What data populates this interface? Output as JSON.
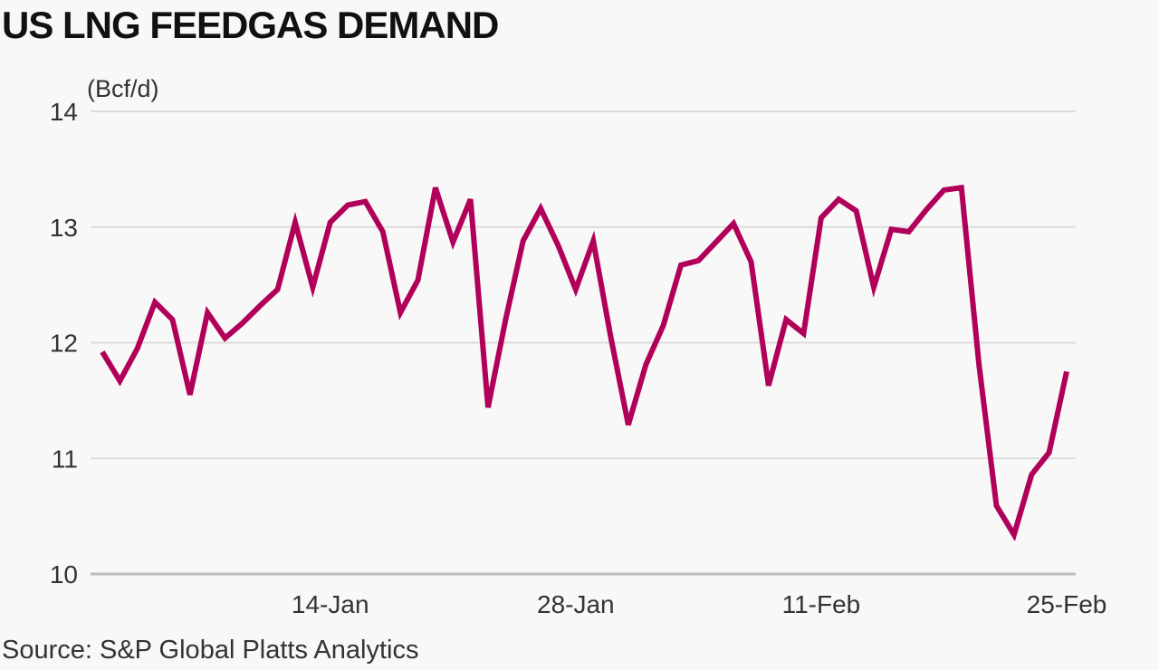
{
  "chart_data": {
    "type": "line",
    "title": "US LNG FEEDGAS DEMAND",
    "unit_label": "(Bcf/d)",
    "source": "Source: S&P Global Platts Analytics",
    "ylim": [
      10,
      14
    ],
    "yticks": [
      10,
      11,
      12,
      13,
      14
    ],
    "grid": true,
    "xlim": [
      "2021-01-01",
      "2021-02-25"
    ],
    "xticks": [
      {
        "date": "2021-01-14",
        "label": "14-Jan"
      },
      {
        "date": "2021-01-28",
        "label": "28-Jan"
      },
      {
        "date": "2021-02-11",
        "label": "11-Feb"
      },
      {
        "date": "2021-02-25",
        "label": "25-Feb"
      }
    ],
    "color": "#b0005a",
    "series": [
      {
        "x": [
          "2021-01-01",
          "2021-01-02",
          "2021-01-03",
          "2021-01-04",
          "2021-01-05",
          "2021-01-06",
          "2021-01-07",
          "2021-01-08",
          "2021-01-09",
          "2021-01-10",
          "2021-01-11",
          "2021-01-12",
          "2021-01-13",
          "2021-01-14",
          "2021-01-15",
          "2021-01-16",
          "2021-01-17",
          "2021-01-18",
          "2021-01-19",
          "2021-01-20",
          "2021-01-21",
          "2021-01-22",
          "2021-01-23",
          "2021-01-24",
          "2021-01-25",
          "2021-01-26",
          "2021-01-27",
          "2021-01-28",
          "2021-01-29",
          "2021-01-30",
          "2021-01-31",
          "2021-02-01",
          "2021-02-02",
          "2021-02-03",
          "2021-02-04",
          "2021-02-05",
          "2021-02-06",
          "2021-02-07",
          "2021-02-08",
          "2021-02-09",
          "2021-02-10",
          "2021-02-11",
          "2021-02-12",
          "2021-02-13",
          "2021-02-14",
          "2021-02-15",
          "2021-02-16",
          "2021-02-17",
          "2021-02-18",
          "2021-02-19",
          "2021-02-20",
          "2021-02-21",
          "2021-02-22",
          "2021-02-23",
          "2021-02-24",
          "2021-02-25"
        ],
        "values": [
          11.92,
          11.67,
          11.95,
          12.35,
          12.2,
          11.55,
          12.26,
          12.04,
          12.17,
          12.32,
          12.46,
          13.04,
          12.48,
          13.04,
          13.19,
          13.22,
          12.96,
          12.26,
          12.54,
          13.34,
          12.87,
          13.24,
          11.44,
          12.2,
          12.88,
          13.16,
          12.84,
          12.46,
          12.88,
          12.05,
          11.29,
          11.81,
          12.15,
          12.67,
          12.71,
          12.87,
          13.03,
          12.7,
          11.63,
          12.2,
          12.08,
          13.08,
          13.24,
          13.14,
          12.48,
          12.98,
          12.96,
          13.15,
          13.32,
          13.34,
          11.81,
          10.59,
          10.34,
          10.86,
          11.05,
          11.75
        ]
      }
    ]
  }
}
